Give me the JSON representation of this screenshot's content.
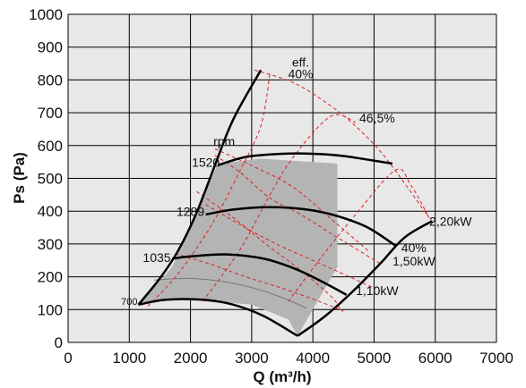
{
  "chart_data": {
    "type": "line",
    "title": "",
    "xlabel": "Q (m³/h)",
    "ylabel": "Ps (Pa)",
    "xlim": [
      0,
      7000
    ],
    "ylim": [
      0,
      1000
    ],
    "xticks": [
      0,
      1000,
      2000,
      3000,
      4000,
      5000,
      6000,
      7000
    ],
    "yticks": [
      0,
      100,
      200,
      300,
      400,
      500,
      600,
      700,
      800,
      900,
      1000
    ],
    "xtick_labels": [
      "0",
      "1000",
      "2000",
      "3000",
      "4000",
      "5000",
      "6000",
      "7000"
    ],
    "ytick_labels": [
      "0",
      "100",
      "200",
      "300",
      "400",
      "500",
      "600",
      "700",
      "800",
      "900",
      "1000"
    ],
    "grid": true,
    "colors": {
      "plot_bg": "#e8e8e8",
      "grid": "#000000",
      "operating_area": "#b4b4b4",
      "curves": "#000000",
      "dashed": "#e02020",
      "thin_curve": "#777777"
    },
    "operating_area": [
      [
        1150,
        115
      ],
      [
        1700,
        230
      ],
      [
        2450,
        545
      ],
      [
        3150,
        560
      ],
      [
        4400,
        545
      ],
      [
        4400,
        230
      ],
      [
        3750,
        20
      ],
      [
        3600,
        70
      ],
      [
        3000,
        115
      ],
      [
        1800,
        135
      ]
    ],
    "speed_curves": [
      {
        "label": "700",
        "points": [
          [
            1150,
            115
          ],
          [
            1600,
            130
          ],
          [
            2200,
            130
          ],
          [
            2700,
            115
          ],
          [
            3200,
            80
          ],
          [
            3750,
            20
          ]
        ]
      },
      {
        "label": "1035",
        "points": [
          [
            1700,
            255
          ],
          [
            2000,
            262
          ],
          [
            2600,
            268
          ],
          [
            3200,
            255
          ],
          [
            3700,
            225
          ],
          [
            4100,
            190
          ],
          [
            4550,
            145
          ]
        ]
      },
      {
        "label": "1289",
        "points": [
          [
            2250,
            390
          ],
          [
            2700,
            405
          ],
          [
            3300,
            412
          ],
          [
            3900,
            405
          ],
          [
            4400,
            385
          ],
          [
            4900,
            350
          ],
          [
            5350,
            295
          ]
        ]
      },
      {
        "label": "1520",
        "points": [
          [
            2450,
            540
          ],
          [
            2900,
            565
          ],
          [
            3500,
            575
          ],
          [
            4000,
            575
          ],
          [
            4500,
            568
          ],
          [
            5300,
            545
          ]
        ]
      }
    ],
    "system_boundaries": [
      {
        "name": "left",
        "points": [
          [
            1150,
            115
          ],
          [
            1500,
            195
          ],
          [
            1800,
            280
          ],
          [
            2100,
            395
          ],
          [
            2400,
            540
          ],
          [
            2700,
            680
          ],
          [
            3150,
            830
          ]
        ]
      },
      {
        "name": "right",
        "points": [
          [
            3750,
            20
          ],
          [
            4200,
            80
          ],
          [
            4650,
            155
          ],
          [
            5100,
            240
          ],
          [
            5500,
            320
          ],
          [
            5950,
            370
          ]
        ]
      }
    ],
    "efficiency_curves_dashed": [
      {
        "points": [
          [
            1300,
            110
          ],
          [
            1800,
            210
          ],
          [
            2350,
            360
          ],
          [
            2800,
            520
          ],
          [
            3150,
            660
          ],
          [
            3300,
            820
          ]
        ]
      },
      {
        "points": [
          [
            2200,
            125
          ],
          [
            2800,
            280
          ],
          [
            3300,
            450
          ],
          [
            3700,
            570
          ],
          [
            4300,
            690
          ],
          [
            4700,
            670
          ]
        ]
      },
      {
        "points": [
          [
            3600,
            125
          ],
          [
            4100,
            250
          ],
          [
            4700,
            390
          ],
          [
            5350,
            525
          ],
          [
            5600,
            480
          ],
          [
            5900,
            380
          ]
        ]
      },
      {
        "points": [
          [
            3050,
            830
          ],
          [
            3700,
            790
          ],
          [
            4300,
            720
          ],
          [
            4750,
            650
          ],
          [
            5200,
            560
          ],
          [
            5900,
            380
          ]
        ]
      },
      {
        "points": [
          [
            2400,
            570
          ],
          [
            2800,
            520
          ],
          [
            3300,
            440
          ],
          [
            3800,
            390
          ],
          [
            4400,
            320
          ],
          [
            5100,
            240
          ]
        ]
      },
      {
        "points": [
          [
            2250,
            420
          ],
          [
            2800,
            360
          ],
          [
            3400,
            300
          ],
          [
            4000,
            250
          ],
          [
            4600,
            200
          ],
          [
            5000,
            165
          ]
        ]
      },
      {
        "points": [
          [
            1750,
            270
          ],
          [
            2300,
            240
          ],
          [
            2900,
            200
          ],
          [
            3500,
            165
          ],
          [
            4100,
            125
          ],
          [
            4500,
            95
          ]
        ]
      },
      {
        "points": [
          [
            2400,
            590
          ],
          [
            3100,
            530
          ],
          [
            3700,
            470
          ],
          [
            4400,
            360
          ],
          [
            4900,
            280
          ]
        ]
      },
      {
        "points": [
          [
            2100,
            460
          ],
          [
            2700,
            380
          ],
          [
            3300,
            290
          ],
          [
            3800,
            220
          ],
          [
            4300,
            140
          ],
          [
            4450,
            100
          ]
        ]
      }
    ],
    "thin_curve": {
      "points": [
        [
          1400,
          190
        ],
        [
          2000,
          195
        ],
        [
          2700,
          180
        ],
        [
          3300,
          150
        ],
        [
          3900,
          105
        ]
      ]
    },
    "annotations": [
      {
        "text": "eff.",
        "x": 3800,
        "y": 840
      },
      {
        "text": "40%",
        "x": 3800,
        "y": 805
      },
      {
        "text": "46,5%",
        "x": 5050,
        "y": 670
      },
      {
        "text": "rpm",
        "x": 2550,
        "y": 600
      },
      {
        "text": "1520",
        "x": 2250,
        "y": 535
      },
      {
        "text": "1289",
        "x": 2000,
        "y": 385
      },
      {
        "text": "1035",
        "x": 1450,
        "y": 245
      },
      {
        "text": "700",
        "x": 1000,
        "y": 115
      },
      {
        "text": "2,20kW",
        "x": 6250,
        "y": 355
      },
      {
        "text": "40%",
        "x": 5650,
        "y": 275
      },
      {
        "text": "1,50kW",
        "x": 5650,
        "y": 235
      },
      {
        "text": "1,10kW",
        "x": 5050,
        "y": 145
      }
    ]
  }
}
